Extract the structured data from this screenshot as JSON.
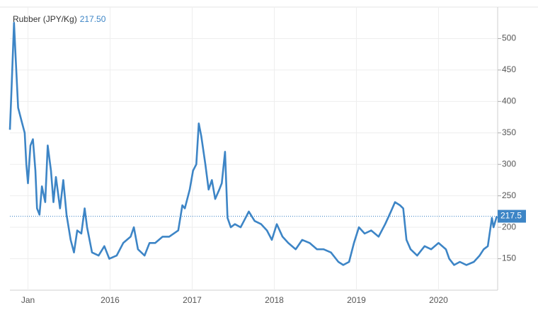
{
  "chart_data": {
    "type": "line",
    "title": "Rubber (JPY/Kg)",
    "color": "#3d85c6",
    "x": [
      2014.78,
      2014.8,
      2014.83,
      2014.85,
      2014.88,
      2014.9,
      2014.92,
      2014.96,
      2014.98,
      2015.0,
      2015.03,
      2015.06,
      2015.09,
      2015.11,
      2015.14,
      2015.17,
      2015.21,
      2015.24,
      2015.28,
      2015.31,
      2015.34,
      2015.39,
      2015.43,
      2015.47,
      2015.52,
      2015.56,
      2015.6,
      2015.65,
      2015.69,
      2015.72,
      2015.78,
      2015.86,
      2015.93,
      2015.99,
      2016.08,
      2016.16,
      2016.25,
      2016.29,
      2016.34,
      2016.42,
      2016.48,
      2016.55,
      2016.64,
      2016.72,
      2016.83,
      2016.88,
      2016.91,
      2016.97,
      2017.01,
      2017.05,
      2017.08,
      2017.11,
      2017.16,
      2017.2,
      2017.24,
      2017.28,
      2017.33,
      2017.36,
      2017.4,
      2017.43,
      2017.47,
      2017.52,
      2017.59,
      2017.63,
      2017.69,
      2017.76,
      2017.84,
      2017.91,
      2017.97,
      2018.03,
      2018.1,
      2018.17,
      2018.26,
      2018.34,
      2018.43,
      2018.52,
      2018.6,
      2018.69,
      2018.78,
      2018.84,
      2018.91,
      2018.97,
      2019.03,
      2019.1,
      2019.18,
      2019.27,
      2019.35,
      2019.42,
      2019.47,
      2019.53,
      2019.57,
      2019.61,
      2019.66,
      2019.74,
      2019.83,
      2019.91,
      2020.0,
      2020.09,
      2020.13,
      2020.19,
      2020.26,
      2020.34,
      2020.43,
      2020.5,
      2020.55,
      2020.6,
      2020.65,
      2020.67,
      2020.71
    ],
    "values": [
      355,
      420,
      525,
      470,
      390,
      380,
      370,
      350,
      300,
      270,
      330,
      340,
      290,
      230,
      220,
      265,
      240,
      330,
      290,
      240,
      280,
      230,
      275,
      220,
      180,
      160,
      195,
      190,
      230,
      200,
      160,
      155,
      170,
      150,
      155,
      175,
      185,
      200,
      165,
      155,
      175,
      175,
      185,
      185,
      195,
      235,
      230,
      260,
      290,
      300,
      365,
      345,
      300,
      260,
      275,
      245,
      260,
      270,
      320,
      215,
      200,
      205,
      200,
      210,
      225,
      210,
      205,
      195,
      180,
      205,
      185,
      175,
      165,
      180,
      175,
      165,
      165,
      160,
      145,
      140,
      145,
      175,
      200,
      190,
      195,
      185,
      205,
      225,
      240,
      235,
      230,
      180,
      165,
      155,
      170,
      165,
      175,
      165,
      150,
      140,
      145,
      140,
      145,
      155,
      165,
      170,
      215,
      200,
      217.5
    ],
    "xlim": [
      2014.78,
      2020.72
    ],
    "xticks": [
      {
        "value": 2015,
        "label": "Jan"
      },
      2016,
      2017,
      2018,
      2019,
      2020
    ],
    "ylim": [
      100,
      550
    ],
    "yticks": [
      150,
      200,
      250,
      300,
      350,
      400,
      450,
      500
    ],
    "grid": true,
    "current": {
      "value": 217.5,
      "label": "217.5",
      "header_label": "217.50"
    }
  }
}
